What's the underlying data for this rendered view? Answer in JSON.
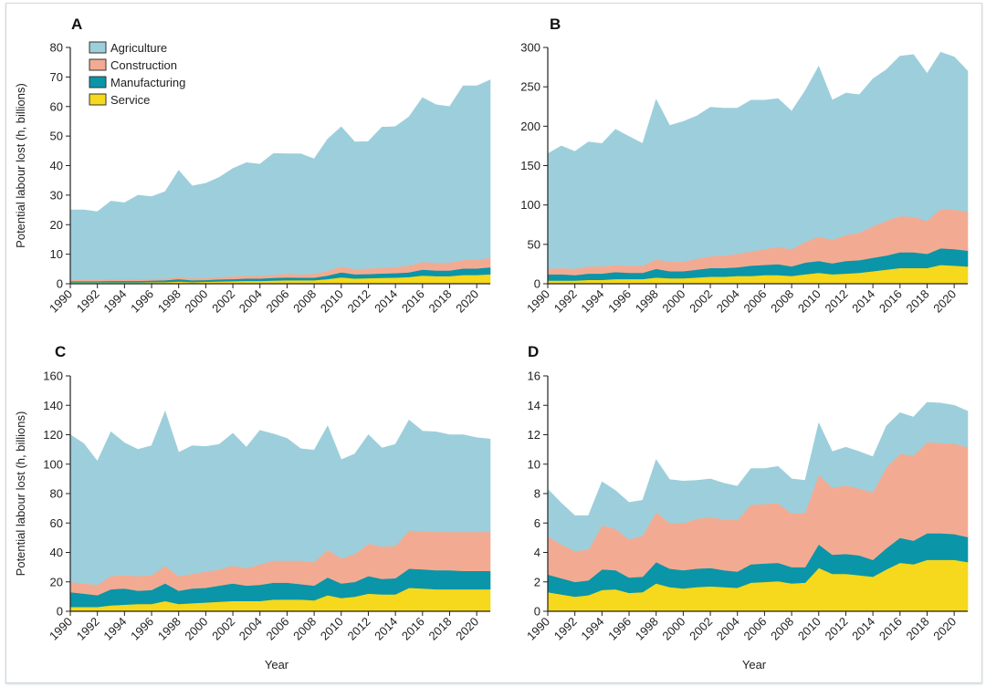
{
  "figure": {
    "colors": {
      "Agriculture": "#9ccfdb",
      "Construction": "#f2ab92",
      "Manufacturing": "#0a95a8",
      "Service": "#f6d81c",
      "axis": "#222222"
    }
  },
  "chart_data": [
    {
      "panel": "A",
      "type": "area",
      "stacked": true,
      "title": "A",
      "xlabel": "",
      "ylabel": "Potential labour lost (h, billions)",
      "ylim": [
        0,
        80
      ],
      "yticks": [
        "0",
        "10",
        "20",
        "30",
        "40",
        "50",
        "60",
        "70",
        "80"
      ],
      "xticks": [
        "1990",
        "1992",
        "1994",
        "1996",
        "1998",
        "2000",
        "2002",
        "2004",
        "2006",
        "2008",
        "2010",
        "2012",
        "2014",
        "2016",
        "2018",
        "2020"
      ],
      "legend": {
        "placement": "top-left",
        "entries": [
          "Agriculture",
          "Construction",
          "Manufacturing",
          "Service"
        ]
      },
      "x": [
        1990,
        1991,
        1992,
        1993,
        1994,
        1995,
        1996,
        1997,
        1998,
        1999,
        2000,
        2001,
        2002,
        2003,
        2004,
        2005,
        2006,
        2007,
        2008,
        2009,
        2010,
        2011,
        2012,
        2013,
        2014,
        2015,
        2016,
        2017,
        2018,
        2019,
        2020,
        2021
      ],
      "series": [
        {
          "name": "Service",
          "values": [
            0.5,
            0.5,
            0.5,
            0.5,
            0.5,
            0.5,
            0.6,
            0.6,
            0.8,
            0.6,
            0.7,
            0.8,
            0.9,
            1.0,
            1.0,
            1.1,
            1.2,
            1.2,
            1.2,
            1.6,
            2.2,
            1.8,
            1.9,
            2.0,
            2.1,
            2.3,
            2.8,
            2.6,
            2.6,
            3.0,
            3.0,
            3.2
          ]
        },
        {
          "name": "Manufacturing",
          "values": [
            0.4,
            0.4,
            0.4,
            0.5,
            0.5,
            0.5,
            0.5,
            0.6,
            0.8,
            0.6,
            0.6,
            0.7,
            0.7,
            0.8,
            0.8,
            0.9,
            1.0,
            0.9,
            0.9,
            1.2,
            1.7,
            1.4,
            1.4,
            1.5,
            1.5,
            1.6,
            2.0,
            1.9,
            1.9,
            2.2,
            2.2,
            2.4
          ]
        },
        {
          "name": "Construction",
          "values": [
            0.6,
            0.5,
            0.5,
            0.6,
            0.6,
            0.6,
            0.6,
            0.6,
            0.8,
            0.7,
            0.7,
            0.8,
            0.9,
            1.0,
            1.0,
            1.1,
            1.2,
            1.1,
            1.3,
            1.6,
            2.0,
            1.8,
            1.9,
            2.0,
            2.1,
            2.3,
            2.6,
            2.6,
            2.7,
            2.9,
            3.0,
            3.2
          ]
        },
        {
          "name": "Agriculture",
          "values": [
            23.5,
            23.6,
            23.0,
            26.4,
            25.8,
            28.4,
            27.8,
            29.4,
            36.0,
            31.2,
            32.0,
            33.7,
            36.5,
            38.2,
            37.7,
            41.0,
            40.6,
            40.8,
            38.9,
            44.6,
            47.2,
            43.0,
            43.0,
            47.5,
            47.5,
            50.3,
            55.6,
            53.5,
            52.8,
            58.9,
            58.8,
            60.2
          ]
        }
      ]
    },
    {
      "panel": "B",
      "type": "area",
      "stacked": true,
      "title": "B",
      "xlabel": "",
      "ylabel": "",
      "ylim": [
        0,
        300
      ],
      "yticks": [
        "0",
        "50",
        "100",
        "150",
        "200",
        "250",
        "300"
      ],
      "xticks": [
        "1990",
        "1992",
        "1994",
        "1996",
        "1998",
        "2000",
        "2002",
        "2004",
        "2006",
        "2008",
        "2010",
        "2012",
        "2014",
        "2016",
        "2018",
        "2020"
      ],
      "x": [
        1990,
        1991,
        1992,
        1993,
        1994,
        1995,
        1996,
        1997,
        1998,
        1999,
        2000,
        2001,
        2002,
        2003,
        2004,
        2005,
        2006,
        2007,
        2008,
        2009,
        2010,
        2011,
        2012,
        2013,
        2014,
        2015,
        2016,
        2017,
        2018,
        2019,
        2020,
        2021
      ],
      "series": [
        {
          "name": "Service",
          "values": [
            4,
            4,
            4,
            5,
            5,
            6,
            6,
            6,
            8,
            7,
            7,
            8,
            9,
            9,
            10,
            10,
            11,
            11,
            10,
            12,
            14,
            12,
            13,
            14,
            16,
            18,
            20,
            20,
            20,
            24,
            23,
            22
          ]
        },
        {
          "name": "Manufacturing",
          "values": [
            8,
            8,
            7,
            8,
            8,
            9,
            8,
            8,
            11,
            9,
            9,
            10,
            11,
            11,
            11,
            13,
            13,
            14,
            12,
            15,
            15,
            14,
            16,
            16,
            17,
            18,
            20,
            20,
            18,
            21,
            21,
            20
          ]
        },
        {
          "name": "Construction",
          "values": [
            7,
            8,
            8,
            9,
            9,
            9,
            9,
            9,
            12,
            12,
            12,
            14,
            15,
            16,
            17,
            18,
            20,
            22,
            22,
            26,
            31,
            30,
            33,
            35,
            40,
            44,
            46,
            45,
            42,
            50,
            50,
            50
          ]
        },
        {
          "name": "Agriculture",
          "values": [
            146,
            155,
            149,
            158,
            156,
            172,
            164,
            155,
            203,
            173,
            178,
            181,
            189,
            187,
            185,
            192,
            189,
            188,
            175,
            192,
            216,
            177,
            180,
            175,
            187,
            192,
            203,
            206,
            187,
            199,
            194,
            178
          ]
        }
      ]
    },
    {
      "panel": "C",
      "type": "area",
      "stacked": true,
      "title": "C",
      "xlabel": "Year",
      "ylabel": "Potential labour lost (h, billions)",
      "ylim": [
        0,
        160
      ],
      "yticks": [
        "0",
        "20",
        "40",
        "60",
        "80",
        "100",
        "120",
        "140",
        "160"
      ],
      "xticks": [
        "1990",
        "1992",
        "1994",
        "1996",
        "1998",
        "2000",
        "2002",
        "2004",
        "2006",
        "2008",
        "2010",
        "2012",
        "2014",
        "2016",
        "2018",
        "2020"
      ],
      "x": [
        1990,
        1991,
        1992,
        1993,
        1994,
        1995,
        1996,
        1997,
        1998,
        1999,
        2000,
        2001,
        2002,
        2003,
        2004,
        2005,
        2006,
        2007,
        2008,
        2009,
        2010,
        2011,
        2012,
        2013,
        2014,
        2015,
        2016,
        2017,
        2018,
        2019,
        2020,
        2021
      ],
      "series": [
        {
          "name": "Service",
          "values": [
            3,
            3,
            3,
            4,
            4.5,
            5,
            5,
            7,
            5,
            5.5,
            6,
            6.5,
            7,
            7,
            7,
            8,
            8,
            8,
            7.5,
            11,
            9,
            10,
            12,
            11.5,
            11.5,
            16,
            15.5,
            15,
            15,
            15,
            15,
            15
          ]
        },
        {
          "name": "Manufacturing",
          "values": [
            10,
            9,
            8,
            11,
            11,
            9,
            9.5,
            12,
            9,
            10,
            10,
            11,
            12,
            10.5,
            11,
            11.5,
            11.5,
            10.5,
            10,
            12,
            10,
            10,
            12,
            10.5,
            11,
            13,
            13,
            13,
            13,
            12.5,
            12.5,
            12.5
          ]
        },
        {
          "name": "Construction",
          "values": [
            7,
            7,
            7,
            9,
            9,
            10,
            10,
            12,
            10,
            10,
            11,
            11,
            12,
            12,
            14,
            15,
            15,
            16,
            16,
            19,
            17,
            19,
            22,
            22,
            22,
            26,
            26,
            26,
            26,
            26.5,
            26.5,
            26.5
          ]
        },
        {
          "name": "Agriculture",
          "values": [
            100,
            95,
            84,
            98,
            90,
            86,
            88,
            105,
            84,
            87,
            85,
            85,
            90,
            82,
            91,
            86,
            83,
            76,
            76,
            84,
            67,
            68,
            74,
            67,
            69,
            75,
            68,
            68,
            66,
            66,
            64,
            63
          ]
        }
      ]
    },
    {
      "panel": "D",
      "type": "area",
      "stacked": true,
      "title": "D",
      "xlabel": "Year",
      "ylabel": "",
      "ylim": [
        0,
        16
      ],
      "yticks": [
        "0",
        "2",
        "4",
        "6",
        "8",
        "10",
        "12",
        "14",
        "16"
      ],
      "xticks": [
        "1990",
        "1992",
        "1994",
        "1996",
        "1998",
        "2000",
        "2002",
        "2004",
        "2006",
        "2008",
        "2010",
        "2012",
        "2014",
        "2016",
        "2018",
        "2020"
      ],
      "x": [
        1990,
        1991,
        1992,
        1993,
        1994,
        1995,
        1996,
        1997,
        1998,
        1999,
        2000,
        2001,
        2002,
        2003,
        2004,
        2005,
        2006,
        2007,
        2008,
        2009,
        2010,
        2011,
        2012,
        2013,
        2014,
        2015,
        2016,
        2017,
        2018,
        2019,
        2020,
        2021
      ],
      "series": [
        {
          "name": "Service",
          "values": [
            1.3,
            1.15,
            1.0,
            1.1,
            1.45,
            1.5,
            1.25,
            1.3,
            1.9,
            1.65,
            1.55,
            1.65,
            1.7,
            1.65,
            1.6,
            1.95,
            2.0,
            2.05,
            1.9,
            1.95,
            2.95,
            2.55,
            2.55,
            2.45,
            2.35,
            2.85,
            3.3,
            3.2,
            3.5,
            3.5,
            3.5,
            3.35
          ]
        },
        {
          "name": "Manufacturing",
          "values": [
            1.2,
            1.1,
            1.0,
            1.0,
            1.4,
            1.3,
            1.05,
            1.05,
            1.45,
            1.25,
            1.25,
            1.25,
            1.25,
            1.15,
            1.1,
            1.25,
            1.25,
            1.25,
            1.1,
            1.05,
            1.6,
            1.3,
            1.35,
            1.35,
            1.15,
            1.45,
            1.7,
            1.6,
            1.8,
            1.8,
            1.75,
            1.7
          ]
        },
        {
          "name": "Construction",
          "values": [
            2.6,
            2.3,
            2.1,
            2.1,
            3.0,
            2.8,
            2.6,
            2.8,
            3.4,
            3.1,
            3.2,
            3.4,
            3.45,
            3.45,
            3.5,
            4.05,
            4.05,
            4.05,
            3.65,
            3.7,
            4.75,
            4.55,
            4.65,
            4.55,
            4.6,
            5.5,
            5.7,
            5.8,
            6.2,
            6.15,
            6.15,
            6.1
          ]
        },
        {
          "name": "Agriculture",
          "values": [
            3.2,
            2.8,
            2.4,
            2.3,
            2.95,
            2.6,
            2.5,
            2.4,
            3.55,
            2.95,
            2.85,
            2.6,
            2.6,
            2.45,
            2.3,
            2.45,
            2.4,
            2.5,
            2.35,
            2.2,
            3.5,
            2.45,
            2.6,
            2.5,
            2.4,
            2.8,
            2.8,
            2.6,
            2.7,
            2.7,
            2.6,
            2.45
          ]
        }
      ]
    }
  ]
}
